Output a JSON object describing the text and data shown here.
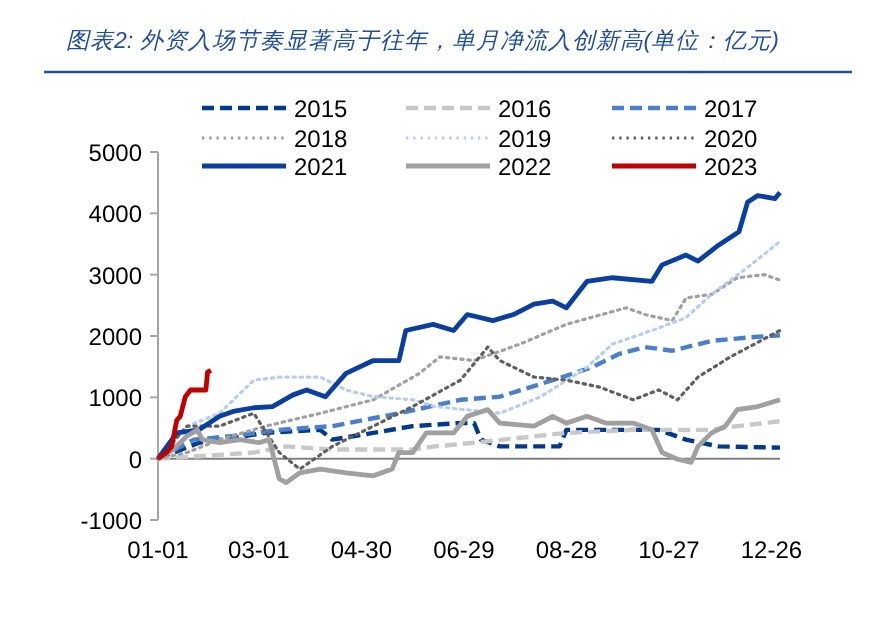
{
  "chart_data": {
    "type": "line",
    "title": "图表2: 外资入场节奏显著高于往年，单月净流入创新高(单位：亿元)",
    "xlim": [
      "--01-01",
      "--12-31"
    ],
    "xticks": [
      {
        "value": "--01-01",
        "label": "01-01"
      },
      {
        "value": "--03-01",
        "label": "03-01"
      },
      {
        "value": "--04-30",
        "label": "04-30"
      },
      {
        "value": "--06-29",
        "label": "06-29"
      },
      {
        "value": "--08-28",
        "label": "08-28"
      },
      {
        "value": "--10-27",
        "label": "10-27"
      },
      {
        "value": "--12-26",
        "label": "12-26"
      }
    ],
    "ylim": [
      -1000,
      5000
    ],
    "yticks": [
      -1000,
      0,
      1000,
      2000,
      3000,
      4000,
      5000
    ],
    "grid": false,
    "ref_lines": [
      {
        "axis": "y",
        "value": 0,
        "color": "#808080"
      }
    ],
    "legend": "top",
    "marker": "none",
    "series": [
      {
        "name": "2015",
        "color": "#003a8c",
        "line_style": "dashed",
        "x": [
          "--01-01",
          "--01-25",
          "--03-05",
          "--04-06",
          "--04-13",
          "--05-07",
          "--05-30",
          "--06-26",
          "--07-05",
          "--07-09",
          "--07-20",
          "--08-24",
          "--08-28",
          "--10-06",
          "--10-21",
          "--11-06",
          "--11-25",
          "--12-31"
        ],
        "values": [
          0,
          260,
          420,
          470,
          310,
          420,
          530,
          580,
          580,
          310,
          200,
          200,
          470,
          470,
          470,
          310,
          200,
          180
        ]
      },
      {
        "name": "2016",
        "color": "#c8c8c8",
        "line_style": "dashed",
        "x": [
          "--01-01",
          "--01-25",
          "--02-26",
          "--03-17",
          "--04-13",
          "--05-30",
          "--06-12",
          "--07-05",
          "--08-28",
          "--10-06",
          "--11-21",
          "--12-06",
          "--12-31"
        ],
        "values": [
          0,
          40,
          100,
          200,
          150,
          150,
          200,
          260,
          420,
          470,
          470,
          530,
          610
        ]
      },
      {
        "name": "2017",
        "color": "#4a7fcc",
        "line_style": "dashed",
        "x": [
          "--01-01",
          "--01-22",
          "--02-14",
          "--03-13",
          "--04-13",
          "--05-22",
          "--06-27",
          "--07-20",
          "--08-20",
          "--09-12",
          "--09-28",
          "--10-13",
          "--10-29",
          "--11-21",
          "--12-14",
          "--12-31"
        ],
        "values": [
          0,
          310,
          370,
          470,
          530,
          740,
          960,
          1010,
          1280,
          1490,
          1710,
          1820,
          1760,
          1920,
          1980,
          2010
        ]
      },
      {
        "name": "2018",
        "color": "#a0a0a0",
        "line_style": "dotted",
        "x": [
          "--01-01",
          "--01-18",
          "--02-06",
          "--03-05",
          "--04-06",
          "--05-07",
          "--06-03",
          "--06-15",
          "--07-05",
          "--08-01",
          "--08-28",
          "--10-02",
          "--10-13",
          "--10-29",
          "--11-06",
          "--11-21",
          "--12-06",
          "--12-22",
          "--12-31"
        ],
        "values": [
          0,
          100,
          310,
          530,
          740,
          960,
          1390,
          1660,
          1600,
          1870,
          2190,
          2460,
          2350,
          2250,
          2620,
          2680,
          2950,
          3000,
          2910
        ]
      },
      {
        "name": "2019",
        "color": "#b7cdf0",
        "line_style": "dotted",
        "x": [
          "--01-01",
          "--01-18",
          "--02-06",
          "--02-26",
          "--03-13",
          "--04-06",
          "--04-21",
          "--05-07",
          "--05-30",
          "--06-12",
          "--07-20",
          "--08-13",
          "--09-09",
          "--09-24",
          "--10-17",
          "--11-06",
          "--11-21",
          "--12-14",
          "--12-31"
        ],
        "values": [
          0,
          530,
          740,
          1280,
          1330,
          1330,
          1120,
          1010,
          960,
          850,
          740,
          1010,
          1490,
          1870,
          2090,
          2300,
          2680,
          3160,
          3540
        ]
      },
      {
        "name": "2020",
        "color": "#606060",
        "line_style": "dotted",
        "x": [
          "--01-01",
          "--01-18",
          "--02-06",
          "--02-26",
          "--03-13",
          "--03-25",
          "--04-13",
          "--05-07",
          "--05-30",
          "--06-27",
          "--07-13",
          "--07-20",
          "--08-09",
          "--08-28",
          "--09-16",
          "--10-06",
          "--10-21",
          "--11-01",
          "--11-13",
          "--12-02",
          "--12-31"
        ],
        "values": [
          0,
          530,
          530,
          740,
          100,
          -170,
          200,
          530,
          850,
          1280,
          1820,
          1600,
          1330,
          1280,
          1170,
          960,
          1120,
          960,
          1330,
          1660,
          2090
        ]
      },
      {
        "name": "2021",
        "color": "#0a3fa0",
        "line_style": "solid",
        "x": [
          "--01-01",
          "--01-12",
          "--01-25",
          "--02-06",
          "--02-14",
          "--02-26",
          "--03-09",
          "--03-21",
          "--03-29",
          "--04-09",
          "--04-21",
          "--05-07",
          "--05-22",
          "--05-26",
          "--06-11",
          "--06-23",
          "--07-01",
          "--07-16",
          "--07-28",
          "--08-09",
          "--08-20",
          "--08-28",
          "--09-09",
          "--09-24",
          "--10-17",
          "--10-23",
          "--11-06",
          "--11-13",
          "--11-25",
          "--12-07",
          "--12-12",
          "--12-18",
          "--12-28",
          "--12-31"
        ],
        "values": [
          0,
          420,
          470,
          690,
          770,
          830,
          850,
          1040,
          1120,
          1010,
          1390,
          1600,
          1600,
          2090,
          2190,
          2090,
          2350,
          2250,
          2350,
          2520,
          2570,
          2460,
          2890,
          2950,
          2890,
          3160,
          3320,
          3220,
          3480,
          3700,
          4180,
          4290,
          4240,
          4340
        ]
      },
      {
        "name": "2022",
        "color": "#a0a0a0",
        "line_style": "solid",
        "x": [
          "--01-01",
          "--01-10",
          "--01-18",
          "--01-24",
          "--01-27",
          "--02-06",
          "--02-18",
          "--03-01",
          "--03-07",
          "--03-13",
          "--03-17",
          "--03-25",
          "--04-06",
          "--04-21",
          "--05-07",
          "--05-18",
          "--05-22",
          "--05-30",
          "--06-07",
          "--06-23",
          "--07-01",
          "--07-13",
          "--07-20",
          "--08-09",
          "--08-20",
          "--08-28",
          "--09-09",
          "--09-20",
          "--10-06",
          "--10-17",
          "--10-23",
          "--11-01",
          "--11-09",
          "--11-13",
          "--11-21",
          "--11-29",
          "--12-06",
          "--12-18",
          "--12-31"
        ],
        "values": [
          0,
          150,
          370,
          470,
          310,
          260,
          310,
          260,
          310,
          -330,
          -390,
          -230,
          -170,
          -230,
          -280,
          -170,
          100,
          100,
          420,
          420,
          690,
          800,
          580,
          530,
          690,
          580,
          690,
          580,
          580,
          470,
          100,
          -10,
          -60,
          200,
          420,
          530,
          800,
          850,
          960
        ]
      },
      {
        "name": "2023",
        "color": "#c00000",
        "line_style": "solid",
        "x": [
          "--01-01",
          "--01-06",
          "--01-09",
          "--01-12",
          "--01-14",
          "--01-17",
          "--01-20",
          "--01-29",
          "--01-30",
          "--02-01"
        ],
        "values": [
          0,
          100,
          200,
          630,
          690,
          1010,
          1120,
          1120,
          1410,
          1440
        ]
      }
    ]
  }
}
